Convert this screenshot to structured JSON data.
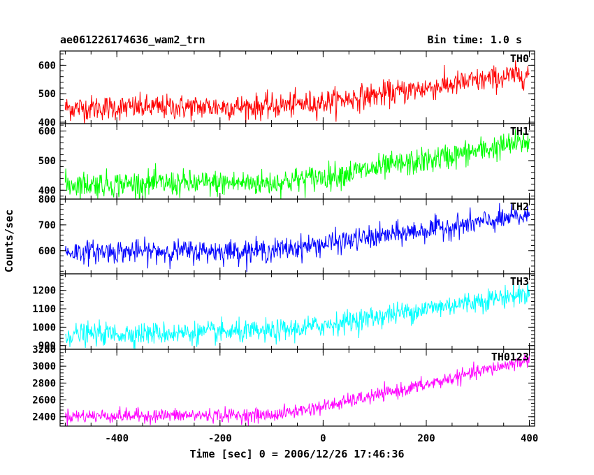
{
  "header": {
    "title": "ae061226174636_wam2_trn",
    "bin_time": "Bin time: 1.0 s"
  },
  "chart_data": {
    "type": "line",
    "xlabel": "Time [sec] 0 = 2006/12/26 17:46:36",
    "ylabel": "Counts/sec",
    "xlim": [
      -510,
      410
    ],
    "x_ticks": [
      -400,
      -200,
      0,
      200,
      400
    ],
    "x_start": -500,
    "x_end": 400,
    "bin_time_s": 1.0,
    "panels": [
      {
        "name": "TH0",
        "color": "#ff0000",
        "ylim": [
          395,
          650
        ],
        "y_ticks": [
          400,
          500,
          600
        ],
        "trend": [
          [
            -500,
            450
          ],
          [
            -100,
            455
          ],
          [
            0,
            470
          ],
          [
            200,
            520
          ],
          [
            400,
            570
          ]
        ],
        "noise": 40
      },
      {
        "name": "TH1",
        "color": "#00ff00",
        "ylim": [
          370,
          625
        ],
        "y_ticks": [
          400,
          500,
          600
        ],
        "trend": [
          [
            -500,
            420
          ],
          [
            -100,
            425
          ],
          [
            0,
            445
          ],
          [
            200,
            500
          ],
          [
            400,
            565
          ]
        ],
        "noise": 40
      },
      {
        "name": "TH2",
        "color": "#0000ff",
        "ylim": [
          510,
          800
        ],
        "y_ticks": [
          600,
          700,
          800
        ],
        "trend": [
          [
            -500,
            595
          ],
          [
            -100,
            600
          ],
          [
            0,
            625
          ],
          [
            200,
            680
          ],
          [
            400,
            735
          ]
        ],
        "noise": 40
      },
      {
        "name": "TH3",
        "color": "#00ffff",
        "ylim": [
          880,
          1290
        ],
        "y_ticks": [
          900,
          1000,
          1100,
          1200
        ],
        "trend": [
          [
            -500,
            960
          ],
          [
            -100,
            975
          ],
          [
            0,
            1010
          ],
          [
            200,
            1100
          ],
          [
            400,
            1185
          ]
        ],
        "noise": 55
      },
      {
        "name": "TH0123",
        "color": "#ff00ff",
        "ylim": [
          2290,
          3200
        ],
        "y_ticks": [
          2400,
          2600,
          2800,
          3000,
          3200
        ],
        "trend": [
          [
            -500,
            2410
          ],
          [
            -100,
            2420
          ],
          [
            0,
            2520
          ],
          [
            200,
            2780
          ],
          [
            400,
            3080
          ]
        ],
        "noise": 75
      }
    ]
  }
}
